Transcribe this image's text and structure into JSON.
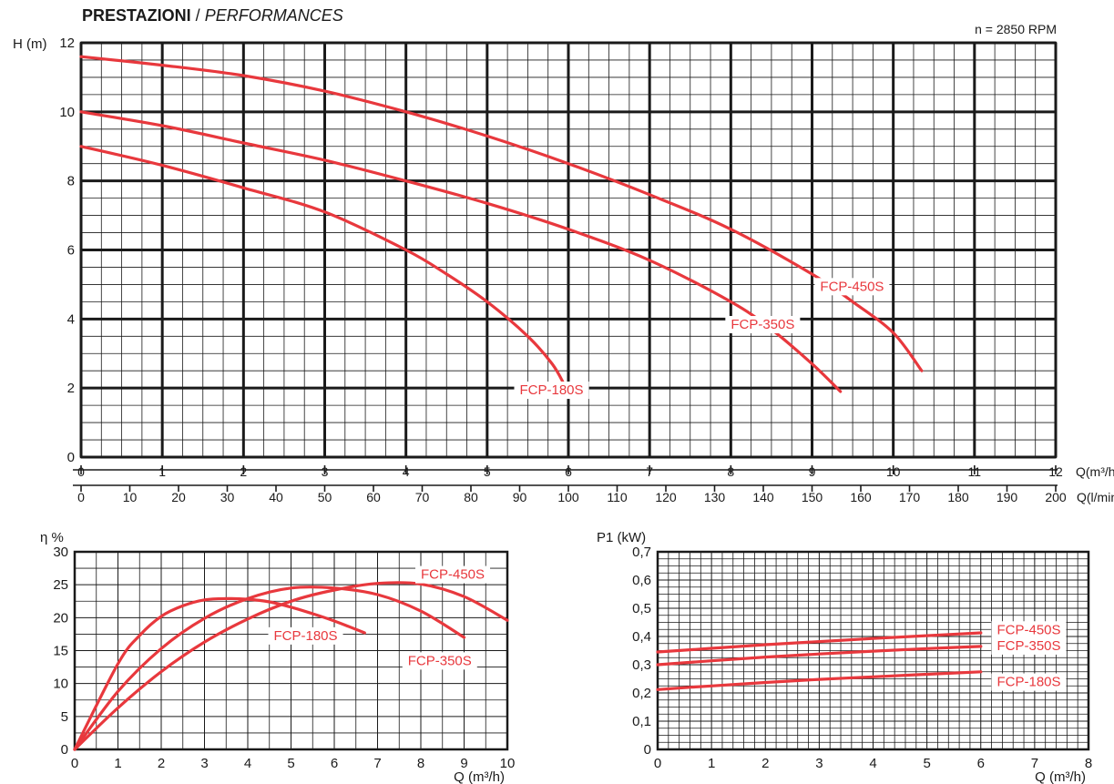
{
  "header": {
    "title_bold": "PRESTAZIONI",
    "title_sep": " / ",
    "title_italic": "PERFORMANCES",
    "rpm": "n = 2850 RPM"
  },
  "colors": {
    "curve": "#e8383d",
    "label": "#e8383d",
    "grid": "#1a1a1a"
  },
  "chart_data": [
    {
      "type": "line",
      "id": "head",
      "ylabel": "H (m)",
      "xlabel": "Q(m³/h)",
      "x2label": "Q(l/min)",
      "xlim": [
        0,
        12
      ],
      "ylim": [
        0,
        12
      ],
      "xticks": [
        "0",
        "1",
        "2",
        "3",
        "4",
        "5",
        "6",
        "7",
        "8",
        "9",
        "10",
        "11",
        "12"
      ],
      "x2ticks": [
        "0",
        "10",
        "20",
        "30",
        "40",
        "50",
        "60",
        "70",
        "80",
        "90",
        "100",
        "110",
        "120",
        "130",
        "140",
        "150",
        "160",
        "170",
        "180",
        "190",
        "200"
      ],
      "yticks": [
        "0",
        "2",
        "4",
        "6",
        "8",
        "10",
        "12"
      ],
      "grid": true,
      "series": [
        {
          "name": "FCP-450S",
          "x": [
            0,
            1,
            2,
            3,
            4,
            5,
            6,
            7,
            8,
            9,
            9.5,
            10,
            10.35
          ],
          "y": [
            11.6,
            11.35,
            11.05,
            10.6,
            10.0,
            9.3,
            8.5,
            7.6,
            6.6,
            5.3,
            4.5,
            3.6,
            2.5
          ]
        },
        {
          "name": "FCP-350S",
          "x": [
            0,
            1,
            2,
            3,
            4,
            5,
            6,
            7,
            8,
            8.5,
            9,
            9.35
          ],
          "y": [
            10.0,
            9.6,
            9.1,
            8.6,
            8.0,
            7.35,
            6.6,
            5.7,
            4.5,
            3.7,
            2.7,
            1.9
          ]
        },
        {
          "name": "FCP-180S",
          "x": [
            0,
            1,
            2,
            3,
            4,
            4.5,
            5,
            5.5,
            5.8,
            5.95
          ],
          "y": [
            9.0,
            8.45,
            7.8,
            7.1,
            6.0,
            5.3,
            4.5,
            3.5,
            2.7,
            2.1
          ]
        }
      ]
    },
    {
      "type": "line",
      "id": "efficiency",
      "ylabel": "η %",
      "xlabel": "Q (m³/h)",
      "xlim": [
        0,
        10
      ],
      "ylim": [
        0,
        30
      ],
      "xticks": [
        "0",
        "1",
        "2",
        "3",
        "4",
        "5",
        "6",
        "7",
        "8",
        "9",
        "10"
      ],
      "yticks": [
        "0",
        "5",
        "10",
        "15",
        "20",
        "25",
        "30"
      ],
      "grid": true,
      "series": [
        {
          "name": "FCP-450S",
          "x": [
            0,
            1,
            2,
            3,
            4,
            5,
            6,
            7,
            8,
            9,
            10
          ],
          "y": [
            0,
            6.3,
            11.8,
            16.3,
            19.8,
            22.5,
            24.2,
            25.2,
            25.1,
            23.2,
            19.6
          ]
        },
        {
          "name": "FCP-350S",
          "x": [
            0,
            1,
            2,
            3,
            4,
            5,
            6,
            7,
            8,
            9
          ],
          "y": [
            0,
            8.8,
            15.3,
            19.9,
            22.9,
            24.5,
            24.5,
            23.5,
            21.0,
            17.0
          ]
        },
        {
          "name": "FCP-180S",
          "x": [
            0,
            1,
            1.5,
            2,
            2.5,
            3,
            3.5,
            4,
            4.5,
            5,
            5.5,
            6,
            6.7
          ],
          "y": [
            0,
            13.0,
            17.3,
            20.2,
            21.8,
            22.7,
            22.9,
            22.8,
            22.4,
            21.6,
            20.6,
            19.5,
            17.7
          ]
        }
      ]
    },
    {
      "type": "line",
      "id": "power",
      "ylabel": "P1 (kW)",
      "xlabel": "Q (m³/h)",
      "xlim": [
        0,
        8
      ],
      "ylim": [
        0,
        0.7
      ],
      "xticks": [
        "0",
        "1",
        "2",
        "3",
        "4",
        "5",
        "6",
        "7",
        "8"
      ],
      "yticks": [
        "0",
        "0,1",
        "0,2",
        "0,3",
        "0,4",
        "0,5",
        "0,6",
        "0,7"
      ],
      "grid": true,
      "series": [
        {
          "name": "FCP-450S",
          "x": [
            0,
            1,
            2,
            3,
            4,
            5,
            6
          ],
          "y": [
            0.345,
            0.358,
            0.371,
            0.382,
            0.393,
            0.403,
            0.413
          ]
        },
        {
          "name": "FCP-350S",
          "x": [
            0,
            1,
            2,
            3,
            4,
            5,
            6
          ],
          "y": [
            0.3,
            0.314,
            0.327,
            0.338,
            0.348,
            0.357,
            0.365
          ]
        },
        {
          "name": "FCP-180S",
          "x": [
            0,
            1,
            2,
            3,
            4,
            5,
            6
          ],
          "y": [
            0.212,
            0.225,
            0.237,
            0.248,
            0.257,
            0.266,
            0.275
          ]
        }
      ]
    }
  ]
}
